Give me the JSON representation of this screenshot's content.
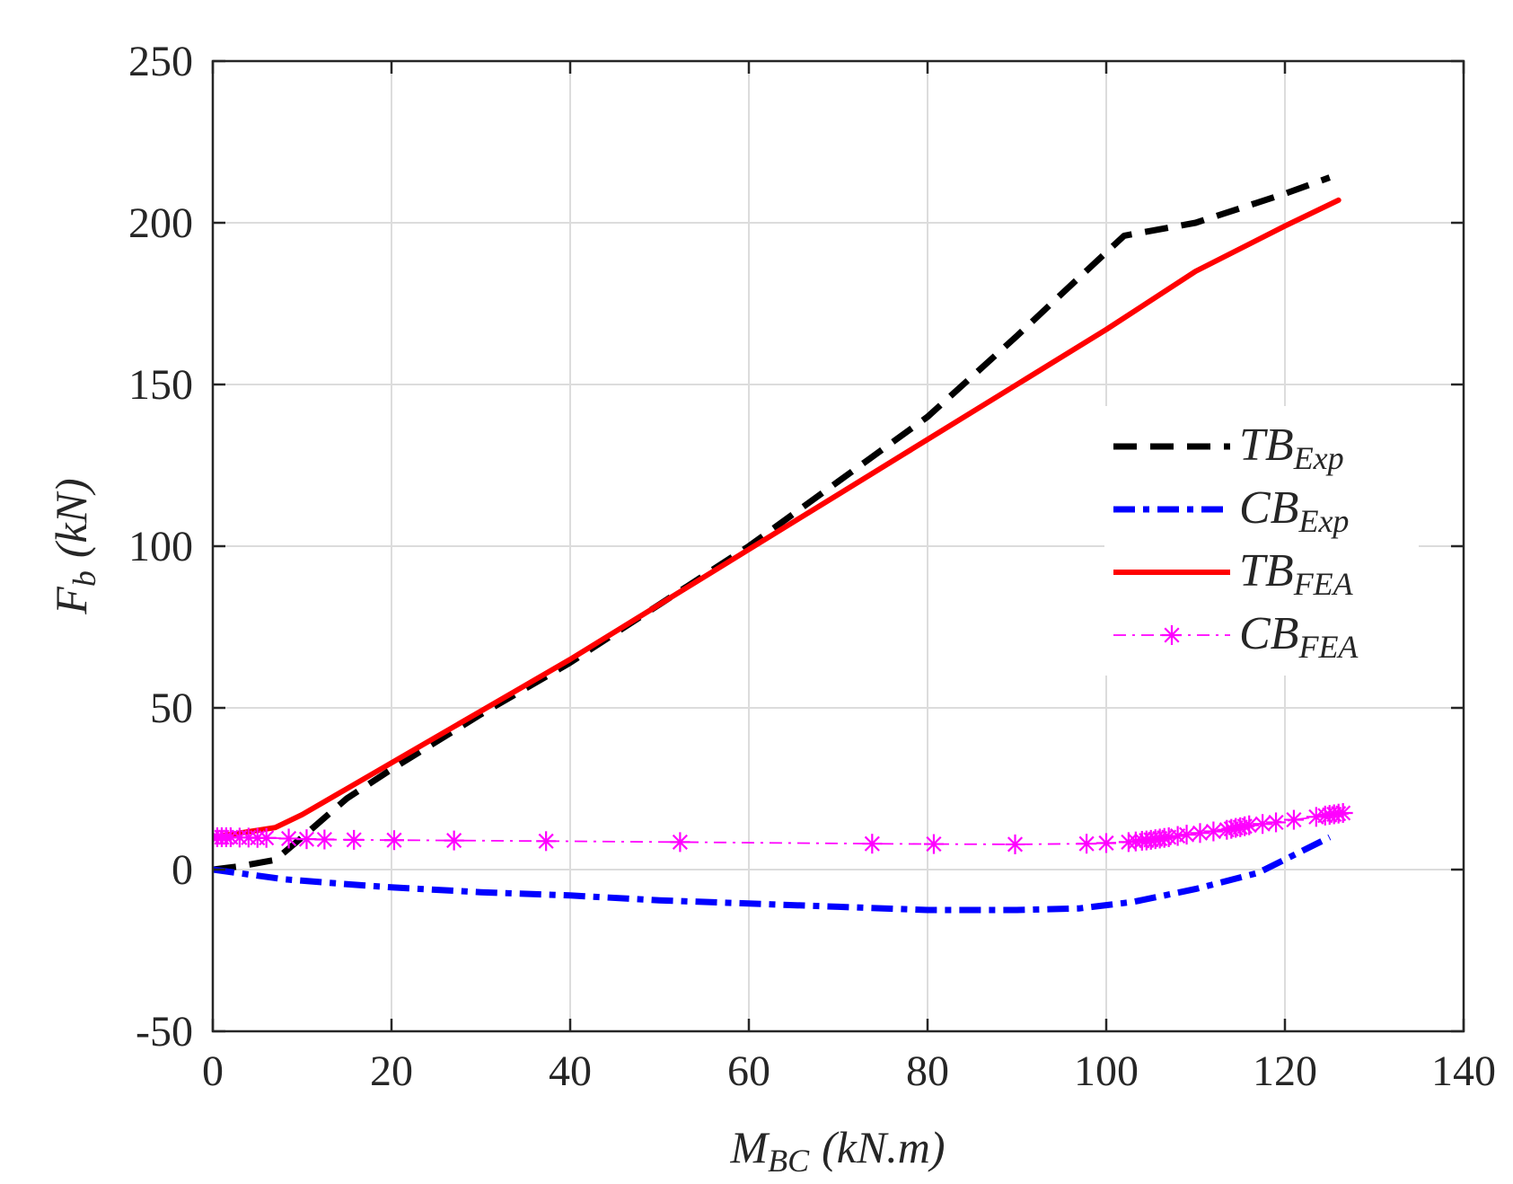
{
  "chart_data": {
    "type": "line",
    "title": "",
    "xlabel": {
      "main": "M",
      "sub": "BC",
      "unit": "(kN.m)"
    },
    "ylabel": {
      "main": "F",
      "sub": "b",
      "unit": "(kN)"
    },
    "xlim": [
      0,
      140
    ],
    "ylim": [
      -50,
      250
    ],
    "xticks": [
      0,
      20,
      40,
      60,
      80,
      100,
      120,
      140
    ],
    "yticks": [
      -50,
      0,
      50,
      100,
      150,
      200,
      250
    ],
    "grid": true,
    "legend_position": "center-right",
    "series": [
      {
        "name": "TB_Exp",
        "label_main": "TB",
        "label_sub": "Exp",
        "color": "#000000",
        "style": "dashed",
        "x": [
          0,
          3,
          7,
          10,
          15,
          20,
          30,
          40,
          50,
          60,
          70,
          80,
          90,
          95,
          102,
          110,
          120,
          125
        ],
        "y": [
          0,
          1,
          3,
          10,
          22,
          31,
          48,
          64,
          82,
          100,
          120,
          140,
          165,
          178,
          196,
          200,
          209,
          214
        ]
      },
      {
        "name": "CB_Exp",
        "label_main": "CB",
        "label_sub": "Exp",
        "color": "#0000ff",
        "style": "dashdot",
        "x": [
          0,
          8,
          15,
          20,
          30,
          40,
          50,
          60,
          70,
          80,
          90,
          97,
          103,
          110,
          117,
          125
        ],
        "y": [
          0,
          -3,
          -4.5,
          -5.5,
          -7,
          -8,
          -9.5,
          -10.5,
          -11.5,
          -12.5,
          -12.5,
          -12,
          -10,
          -6,
          -1,
          10
        ]
      },
      {
        "name": "TB_FEA",
        "label_main": "TB",
        "label_sub": "FEA",
        "color": "#ff0000",
        "style": "solid",
        "x": [
          0,
          7,
          10,
          20,
          30,
          40,
          50,
          60,
          70,
          80,
          90,
          100,
          110,
          120,
          126
        ],
        "y": [
          10,
          13,
          17,
          33,
          49,
          65,
          82,
          99,
          116,
          133,
          150,
          167,
          185,
          199,
          207
        ]
      },
      {
        "name": "CB_FEA",
        "label_main": "CB",
        "label_sub": "FEA",
        "color": "#ff00ff",
        "style": "dashdot-star",
        "x": [
          0,
          0.5,
          1,
          1.5,
          2,
          3,
          4,
          5,
          6,
          8.5,
          10.5,
          12.5,
          15.8,
          20.3,
          27,
          37.3,
          52.3,
          73.8,
          80.7,
          89.8,
          97.8,
          100,
          102.5,
          103.3,
          104,
          104.5,
          105,
          105.5,
          106,
          106.5,
          107,
          108,
          109,
          110.5,
          112,
          113.5,
          114,
          114.5,
          115,
          115.5,
          116,
          117.5,
          119,
          121,
          123.5,
          124.5,
          125,
          125.5,
          126,
          126.5
        ],
        "y": [
          10,
          10,
          10,
          10,
          10,
          9.9,
          9.9,
          9.8,
          9.8,
          9.6,
          9.4,
          9.3,
          9.2,
          9.1,
          9.0,
          8.8,
          8.5,
          8.0,
          7.9,
          7.8,
          8.0,
          8.2,
          8.5,
          8.7,
          8.9,
          9.0,
          9.2,
          9.4,
          9.6,
          9.8,
          10.0,
          10.4,
          10.8,
          11.3,
          11.8,
          12.3,
          12.6,
          12.9,
          13.1,
          13.4,
          13.7,
          14.1,
          14.6,
          15.4,
          16.3,
          16.7,
          16.9,
          17.1,
          17.3,
          17.5
        ]
      }
    ]
  }
}
